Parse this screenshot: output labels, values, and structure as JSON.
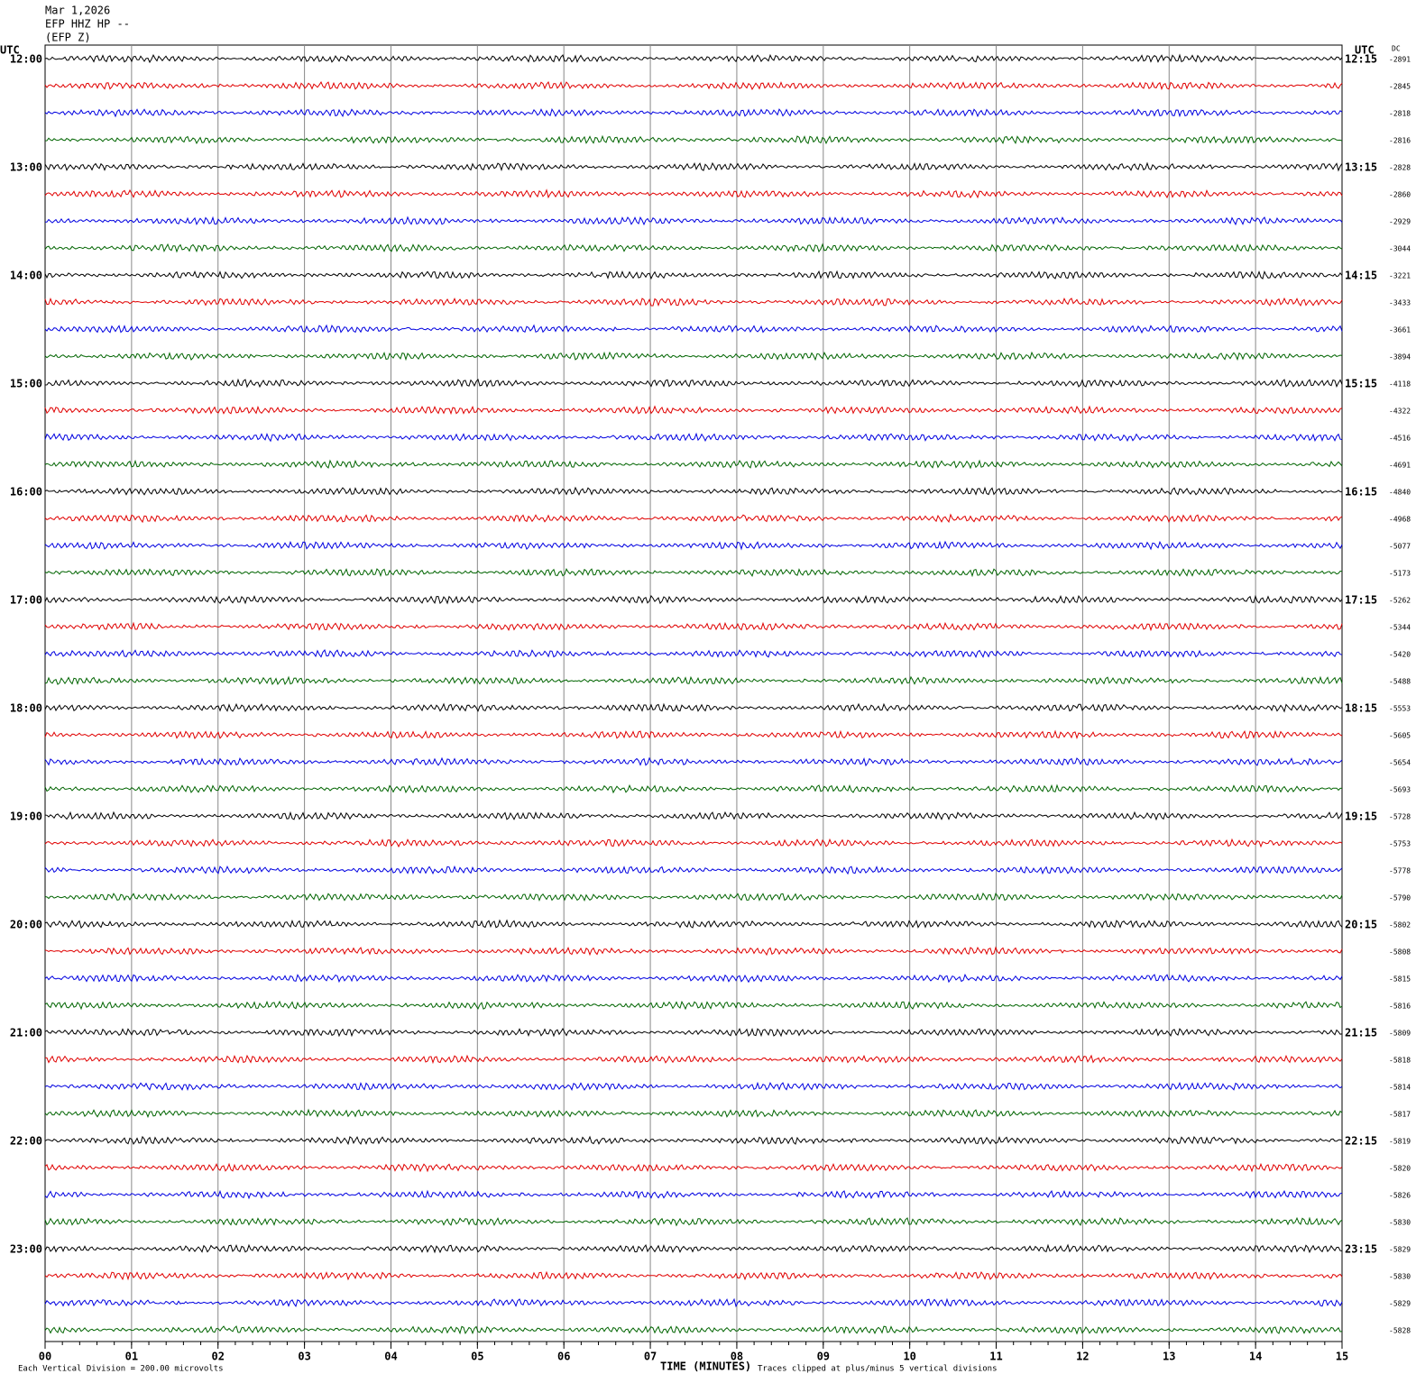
{
  "chart_data": {
    "type": "helicorder",
    "title_lines": [
      "Mar 1,2026",
      "EFP HHZ HP --",
      "(EFP Z)"
    ],
    "left_axis_title": "UTC",
    "right_axis_title": "UTC",
    "dc_title": "DC",
    "row_colors": [
      "#000000",
      "#e00000",
      "#0000e0",
      "#006400"
    ],
    "left_labels": [
      "12:00",
      "13:00",
      "14:00",
      "15:00",
      "16:00",
      "17:00",
      "18:00",
      "19:00",
      "20:00",
      "21:00",
      "22:00",
      "23:00"
    ],
    "right_labels": [
      "12:15",
      "13:15",
      "14:15",
      "15:15",
      "16:15",
      "17:15",
      "18:15",
      "19:15",
      "20:15",
      "21:15",
      "22:15",
      "23:15"
    ],
    "dc_labels": [
      "-2891",
      "-2845",
      "-2818",
      "-2816",
      "-2828",
      "-2860",
      "-2929",
      "-3044",
      "-3221",
      "-3433",
      "-3661",
      "-3894",
      "-4118",
      "-4322",
      "-4516",
      "-4691",
      "-4840",
      "-4968",
      "-5077",
      "-5173",
      "-5262",
      "-5344",
      "-5420",
      "-5488",
      "-5553",
      "-5605",
      "-5654",
      "-5693",
      "-5728",
      "-5753",
      "-5778",
      "-5790",
      "-5802",
      "-5808",
      "-5815",
      "-5816",
      "-5809",
      "-5818",
      "-5814",
      "-5817",
      "-5819",
      "-5820",
      "-5826",
      "-5830",
      "-5829",
      "-5830",
      "-5829",
      "-5828"
    ],
    "xlim": [
      0,
      15
    ],
    "xticks": [
      {
        "value": 0,
        "label": "00"
      },
      {
        "value": 1,
        "label": "01"
      },
      {
        "value": 2,
        "label": "02"
      },
      {
        "value": 3,
        "label": "03"
      },
      {
        "value": 4,
        "label": "04"
      },
      {
        "value": 5,
        "label": "05"
      },
      {
        "value": 6,
        "label": "06"
      },
      {
        "value": 7,
        "label": "07"
      },
      {
        "value": 8,
        "label": "08"
      },
      {
        "value": 9,
        "label": "09"
      },
      {
        "value": 10,
        "label": "10"
      },
      {
        "value": 11,
        "label": "11"
      },
      {
        "value": 12,
        "label": "12"
      },
      {
        "value": 13,
        "label": "13"
      },
      {
        "value": 14,
        "label": "14"
      },
      {
        "value": 15,
        "label": "15"
      }
    ],
    "xlabel": "TIME (MINUTES)",
    "scale_note": "Each Vertical Division =  200.00 microvolts",
    "clip_note": "Traces clipped at plus/minus 5 vertical divisions",
    "grid": true
  }
}
